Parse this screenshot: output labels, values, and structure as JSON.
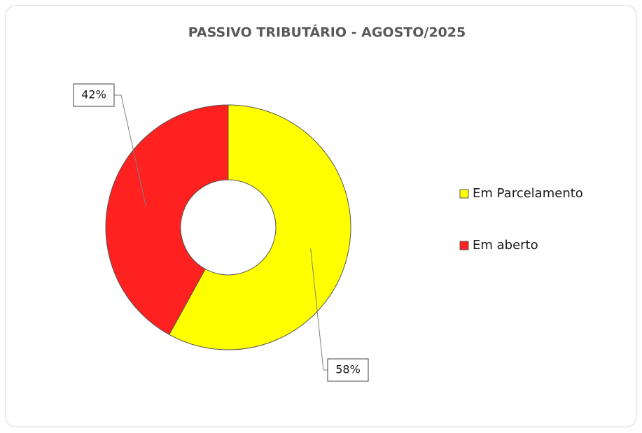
{
  "chart_data": {
    "type": "donut",
    "title": "PASSIVO TRIBUTÁRIO - AGOSTO/2025",
    "categories": [
      "Em Parcelamento",
      "Em aberto"
    ],
    "values": [
      58,
      42
    ],
    "value_labels": [
      "58%",
      "42%"
    ],
    "colors": [
      "#ffff00",
      "#ff2020"
    ],
    "legend": "right"
  }
}
